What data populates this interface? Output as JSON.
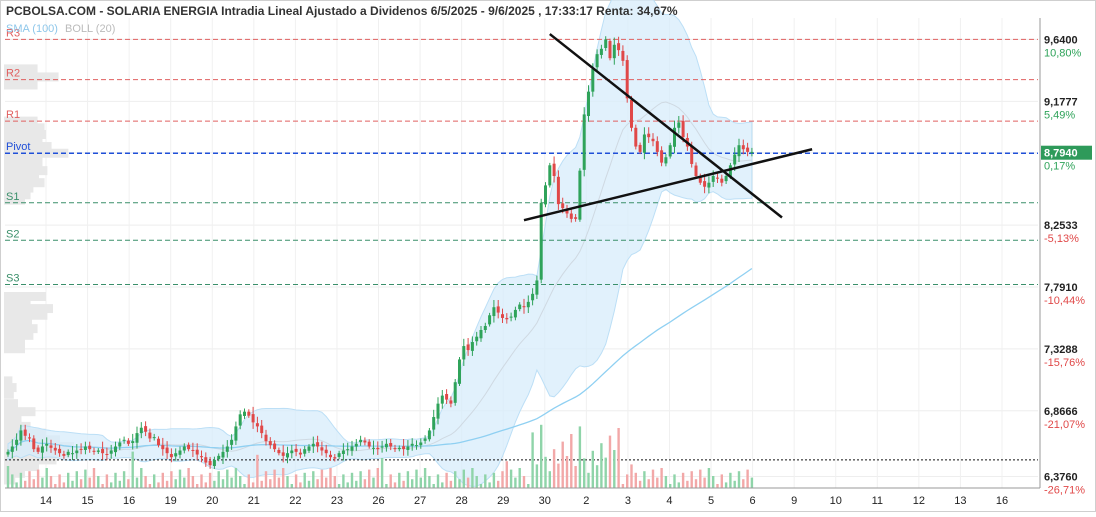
{
  "chart_data": {
    "type": "candlestick",
    "title": "PCBOLSA.COM - SOLARIA ENERGIA Intradia Lineal Ajustado a Dividenos 6/5/2025 - 9/6/2025 , 17:33:17 Renta: 34,67%",
    "indicators": {
      "sma": "SMA (100)",
      "boll": "BOLL (20)"
    },
    "y_axis": {
      "range": [
        6.29,
        9.8
      ],
      "ticks": [
        {
          "value": 9.64,
          "label": "9,6400",
          "pct": "10,80%"
        },
        {
          "value": 9.1777,
          "label": "9,1777",
          "pct": "5,49%"
        },
        {
          "value": 8.794,
          "label": "8,7940",
          "pct": "0,17%"
        },
        {
          "value": 8.2533,
          "label": "8,2533",
          "pct": "-5,13%"
        },
        {
          "value": 7.791,
          "label": "7,7910",
          "pct": "-10,44%"
        },
        {
          "value": 7.3288,
          "label": "7,3288",
          "pct": "-15,76%"
        },
        {
          "value": 6.8666,
          "label": "6,8666",
          "pct": "-21,07%"
        },
        {
          "value": 6.376,
          "label": "6,3760",
          "pct": "-26,71%"
        }
      ],
      "current_label": "8,7940"
    },
    "x_axis": {
      "ticks": [
        "14",
        "15",
        "16",
        "19",
        "20",
        "21",
        "22",
        "23",
        "26",
        "27",
        "28",
        "29",
        "30",
        "2",
        "3",
        "4",
        "5",
        "6",
        "9",
        "10",
        "11",
        "12",
        "13",
        "16"
      ]
    },
    "levels": [
      {
        "name": "R3",
        "value": 9.64
      },
      {
        "name": "R2",
        "value": 9.34
      },
      {
        "name": "R1",
        "value": 9.03
      },
      {
        "name": "Pivot",
        "value": 8.79
      },
      {
        "name": "S1",
        "value": 8.42
      },
      {
        "name": "S2",
        "value": 8.14
      },
      {
        "name": "S3",
        "value": 7.81
      }
    ],
    "reference_line": 6.5,
    "close_series": [
      6.56,
      6.6,
      6.65,
      6.72,
      6.68,
      6.66,
      6.58,
      6.56,
      6.6,
      6.62,
      6.59,
      6.57,
      6.55,
      6.53,
      6.56,
      6.55,
      6.57,
      6.58,
      6.6,
      6.58,
      6.56,
      6.57,
      6.55,
      6.54,
      6.57,
      6.6,
      6.63,
      6.65,
      6.62,
      6.64,
      6.7,
      6.74,
      6.71,
      6.66,
      6.67,
      6.61,
      6.58,
      6.55,
      6.52,
      6.55,
      6.57,
      6.6,
      6.58,
      6.57,
      6.54,
      6.52,
      6.48,
      6.46,
      6.5,
      6.53,
      6.56,
      6.6,
      6.65,
      6.75,
      6.84,
      6.86,
      6.83,
      6.78,
      6.75,
      6.7,
      6.64,
      6.61,
      6.58,
      6.55,
      6.53,
      6.55,
      6.57,
      6.56,
      6.54,
      6.58,
      6.6,
      6.62,
      6.6,
      6.57,
      6.55,
      6.52,
      6.51,
      6.55,
      6.57,
      6.58,
      6.6,
      6.62,
      6.65,
      6.63,
      6.6,
      6.59,
      6.58,
      6.6,
      6.62,
      6.6,
      6.58,
      6.59,
      6.58,
      6.6,
      6.62,
      6.61,
      6.63,
      6.66,
      6.72,
      6.82,
      6.92,
      6.98,
      6.95,
      6.92,
      7.08,
      7.25,
      7.35,
      7.32,
      7.38,
      7.42,
      7.47,
      7.5,
      7.58,
      7.64,
      7.6,
      7.56,
      7.55,
      7.57,
      7.62,
      7.66,
      7.64,
      7.68,
      7.74,
      7.84,
      8.42,
      8.55,
      8.7,
      8.62,
      8.41,
      8.38,
      8.34,
      8.3,
      8.3,
      8.66,
      9.08,
      9.25,
      9.42,
      9.53,
      9.57,
      9.64,
      9.5,
      9.6,
      9.56,
      9.48,
      9.2,
      8.98,
      8.84,
      8.8,
      8.93,
      8.91,
      8.88,
      8.8,
      8.72,
      8.76,
      8.85,
      8.98,
      9.02,
      8.91,
      8.84,
      8.71,
      8.62,
      8.57,
      8.54,
      8.57,
      8.62,
      8.6,
      8.57,
      8.62,
      8.7,
      8.78,
      8.85,
      8.82,
      8.8,
      8.8
    ],
    "volume_profile": [
      {
        "value": 9.42,
        "width": 48
      },
      {
        "value": 9.36,
        "width": 78
      },
      {
        "value": 9.3,
        "width": 48
      },
      {
        "value": 9.03,
        "width": 48
      },
      {
        "value": 8.98,
        "width": 58
      },
      {
        "value": 8.93,
        "width": 60
      },
      {
        "value": 8.88,
        "width": 55
      },
      {
        "value": 8.84,
        "width": 68
      },
      {
        "value": 8.79,
        "width": 92
      },
      {
        "value": 8.75,
        "width": 55
      },
      {
        "value": 8.71,
        "width": 55
      },
      {
        "value": 8.66,
        "width": 62
      },
      {
        "value": 8.62,
        "width": 50
      },
      {
        "value": 8.57,
        "width": 58
      },
      {
        "value": 8.53,
        "width": 42
      },
      {
        "value": 8.48,
        "width": 38
      },
      {
        "value": 8.44,
        "width": 30
      },
      {
        "value": 7.72,
        "width": 60
      },
      {
        "value": 7.67,
        "width": 38
      },
      {
        "value": 7.63,
        "width": 70
      },
      {
        "value": 7.58,
        "width": 62
      },
      {
        "value": 7.53,
        "width": 40
      },
      {
        "value": 7.48,
        "width": 48
      },
      {
        "value": 7.43,
        "width": 42
      },
      {
        "value": 7.38,
        "width": 30
      },
      {
        "value": 7.33,
        "width": 30
      },
      {
        "value": 7.09,
        "width": 12
      },
      {
        "value": 7.04,
        "width": 18
      },
      {
        "value": 6.99,
        "width": 14
      },
      {
        "value": 6.92,
        "width": 20
      },
      {
        "value": 6.86,
        "width": 45
      },
      {
        "value": 6.8,
        "width": 25
      },
      {
        "value": 6.75,
        "width": 38
      },
      {
        "value": 6.7,
        "width": 60
      },
      {
        "value": 6.65,
        "width": 80
      },
      {
        "value": 6.6,
        "width": 100
      },
      {
        "value": 6.55,
        "width": 110
      },
      {
        "value": 6.5,
        "width": 75
      },
      {
        "value": 6.45,
        "width": 50
      },
      {
        "value": 6.4,
        "width": 30
      },
      {
        "value": 6.35,
        "width": 16
      }
    ],
    "trendlines": [
      {
        "name": "descending",
        "from": {
          "bar": 126,
          "value": 9.68
        },
        "to": {
          "bar": 180,
          "value": 8.31
        }
      },
      {
        "name": "ascending",
        "from": {
          "bar": 120,
          "value": 8.29
        },
        "to": {
          "bar": 187,
          "value": 8.82
        }
      }
    ],
    "legend": "none",
    "grid": true
  }
}
